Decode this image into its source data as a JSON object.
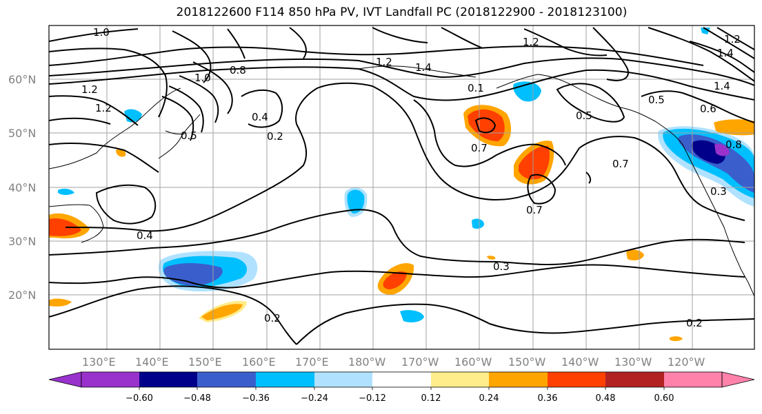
{
  "title": "2018122600 F114 850 hPa PV, IVT Landfall PC (2018122900 - 2018123100)",
  "latitude_labels": [
    "60°N",
    "50°N",
    "40°N",
    "30°N",
    "20°N"
  ],
  "longitude_labels": [
    "130°E",
    "140°E",
    "150°E",
    "160°E",
    "170°E",
    "180°W",
    "170°W",
    "160°W",
    "150°W",
    "140°W",
    "130°W",
    "120°W"
  ],
  "contour_labels": [
    "1.0",
    "1.2",
    "1.2",
    "1.2",
    "1.4",
    "1.0",
    "0.8",
    "1.2",
    "1.4",
    "0.1",
    "0.5",
    "0.5",
    "0.4",
    "0.2",
    "0.7",
    "0.7",
    "0.7",
    "0.3",
    "0.3",
    "0.4",
    "0.2",
    "0.2",
    "0.5",
    "0.6",
    "1.4",
    "0.8",
    "1.2"
  ],
  "colorbar": {
    "ticks": [
      "−0.60",
      "−0.48",
      "−0.36",
      "−0.24",
      "−0.12",
      "0.12",
      "0.24",
      "0.36",
      "0.48",
      "0.60"
    ],
    "colors": [
      "#9932CC",
      "#00008B",
      "#3A5FCD",
      "#00BFFF",
      "#B0E2FF",
      "#FFFFFF",
      "#FFEC8B",
      "#FFA500",
      "#FF4000",
      "#B22222",
      "#FF82AB"
    ]
  }
}
